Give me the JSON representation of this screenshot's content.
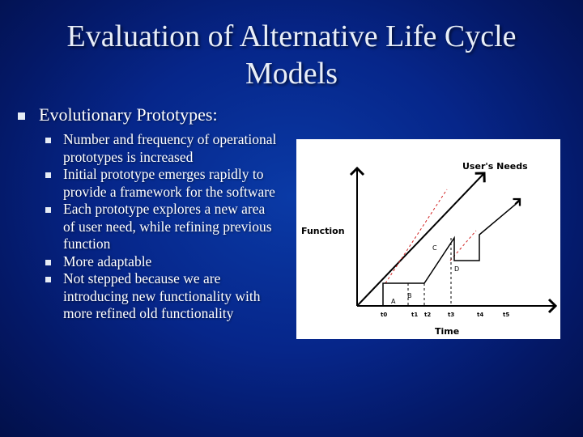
{
  "slide": {
    "title": "Evaluation of Alternative Life Cycle Models",
    "main_bullet": "Evolutionary Prototypes:",
    "sub_bullets": [
      "Number and frequency of operational prototypes is increased",
      "Initial prototype emerges rapidly to provide a framework for the software",
      "Each prototype explores a new area of user need, while refining previous function",
      "More adaptable",
      "Not stepped because we are introducing new functionality with more refined old functionality"
    ]
  },
  "diagram": {
    "labels": {
      "users_needs": "User's Needs",
      "function": "Function",
      "time": "Time",
      "point_a": "A",
      "point_b": "B",
      "point_c": "C",
      "point_d": "D"
    },
    "ticks": [
      "t0",
      "t1",
      "t2",
      "t3",
      "t4",
      "t5"
    ],
    "colors": {
      "needs_line": "#000000",
      "dashed": "#000000",
      "red_dashed": "#d02020"
    }
  }
}
